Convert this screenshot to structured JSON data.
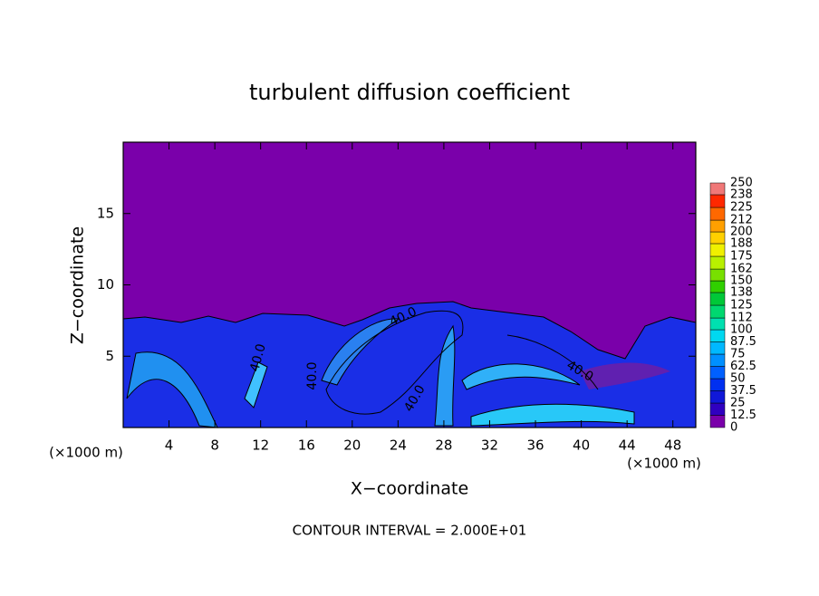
{
  "chart_data": {
    "type": "contour",
    "title": "turbulent diffusion coefficient",
    "xlabel": "X−coordinate",
    "ylabel": "Z−coordinate",
    "x_unit_left": "(×1000 m)",
    "x_unit_right": "(×1000 m)",
    "footer": "CONTOUR INTERVAL = 2.000E+01",
    "contour_level": {
      "value": 40,
      "label": "40.0"
    },
    "xlim": [
      0,
      50
    ],
    "xticks": [
      4,
      8,
      12,
      16,
      20,
      24,
      28,
      32,
      36,
      40,
      44,
      48
    ],
    "ylim": [
      0,
      20
    ],
    "yticks": [
      5,
      10,
      15
    ],
    "colorbar_lim": [
      0,
      250
    ],
    "colorbar_ticks": [
      0,
      12.5,
      25,
      37.5,
      50,
      62.5,
      75,
      87.5,
      100,
      112,
      125,
      138,
      150,
      162,
      175,
      188,
      200,
      212,
      225,
      238,
      250
    ],
    "colors": [
      "#7a00aa",
      "#3000c0",
      "#1018d8",
      "#0030f0",
      "#0060ff",
      "#0090ff",
      "#00b8ff",
      "#00d8f0",
      "#00e0b0",
      "#00d870",
      "#00c838",
      "#30d000",
      "#78e000",
      "#b8f000",
      "#f0f000",
      "#ffd000",
      "#ffa000",
      "#ff6800",
      "#ff2800",
      "#f07878"
    ]
  }
}
